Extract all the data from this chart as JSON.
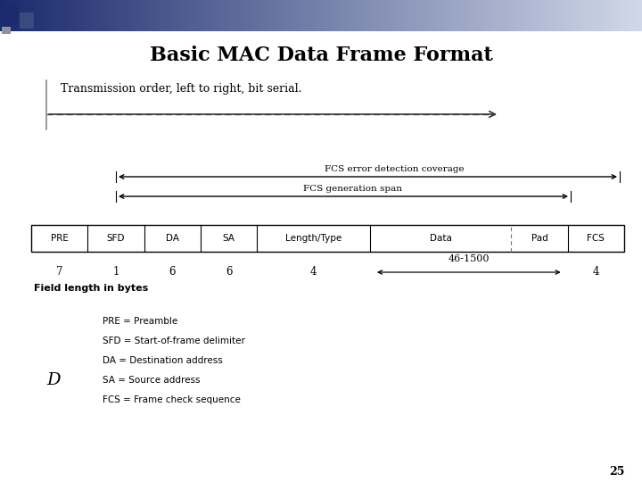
{
  "title": "Basic MAC Data Frame Format",
  "subtitle": "Transmission order, left to right, bit serial.",
  "background_color": "#ffffff",
  "title_fontsize": 16,
  "fields": [
    "PRE",
    "SFD",
    "DA",
    "SA",
    "Length/Type",
    "Data",
    "Pad",
    "FCS"
  ],
  "field_widths": [
    1,
    1,
    1,
    1,
    2,
    2.5,
    1,
    1
  ],
  "fcs_error_label": "FCS error detection coverage",
  "fcs_gen_label": "FCS generation span",
  "field_length_label": "Field length in bytes",
  "legend_lines": [
    "PRE = Preamble",
    "SFD = Start-of-frame delimiter",
    "DA = Destination address",
    "SA = Source address",
    "FCS = Frame check sequence"
  ],
  "simple_lengths": [
    "7",
    "1",
    "6",
    "6",
    "4"
  ],
  "data_length": "46-1500",
  "fcs_length": "4",
  "page_number": "25",
  "D_label": "D",
  "header_gradient_left": "#1a2a6c",
  "header_gradient_right": "#d0d8e8",
  "sq1_color": "#1a2a6c",
  "sq2_color": "#3a4a7c"
}
